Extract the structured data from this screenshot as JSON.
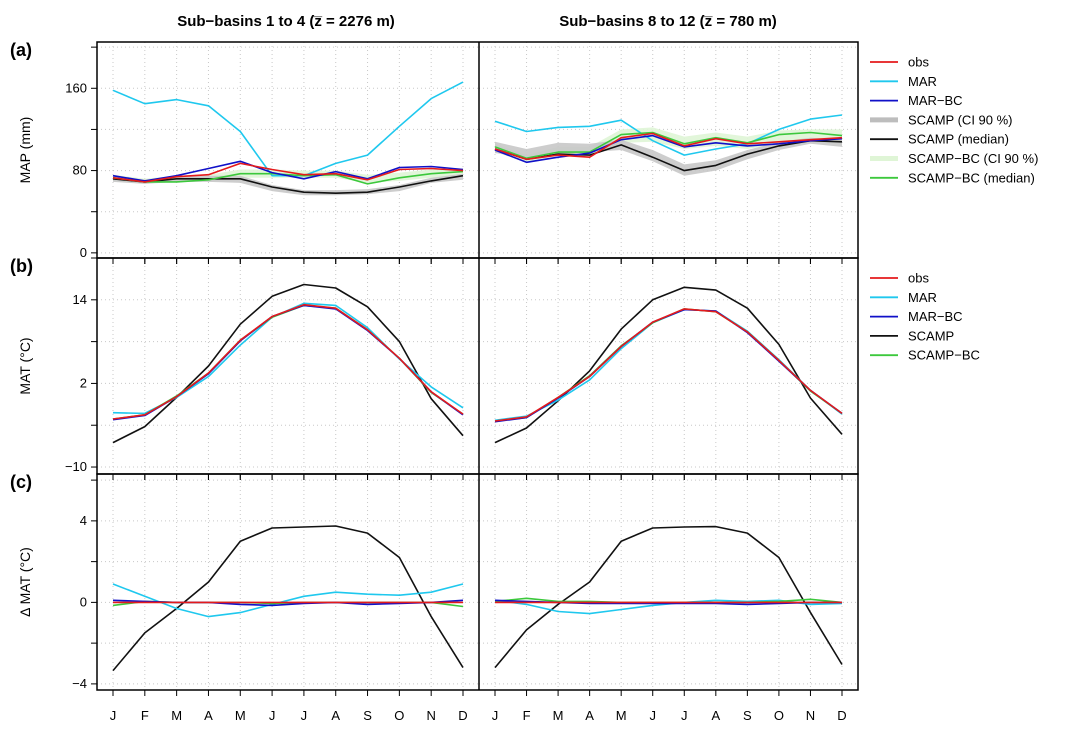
{
  "chart_data": {
    "type": "line",
    "months": [
      "J",
      "F",
      "M",
      "A",
      "M",
      "J",
      "J",
      "A",
      "S",
      "O",
      "N",
      "D"
    ],
    "columns": [
      {
        "title": "Sub−basins 1 to 4 (z̅ = 2276 m)"
      },
      {
        "title": "Sub−basins 8 to 12 (z̅ = 780 m)"
      }
    ],
    "colors": {
      "obs": "#e41a1c",
      "MAR": "#1fc8ee",
      "MAR-BC": "#1010c8",
      "SCAMP": "#111111",
      "SCAMP_CI": "#c8c8c8",
      "SCAMP-BC": "#3cc83c",
      "SCAMP-BC_CI": "#dff5d6"
    },
    "panels": [
      {
        "letter": "(a)",
        "ylabel": "MAP (mm)",
        "ylim": [
          -5,
          205
        ],
        "yticks": [
          0,
          80,
          160
        ],
        "ygrid": [
          0,
          40,
          80,
          120,
          160,
          200
        ],
        "legend": [
          {
            "label": "obs",
            "color": "#e41a1c",
            "wide": false
          },
          {
            "label": "MAR",
            "color": "#1fc8ee",
            "wide": false
          },
          {
            "label": "MAR−BC",
            "color": "#1010c8",
            "wide": false
          },
          {
            "label": "SCAMP (CI 90 %)",
            "color": "#bdbdbd",
            "wide": true
          },
          {
            "label": "SCAMP (median)",
            "color": "#111111",
            "wide": false
          },
          {
            "label": "SCAMP−BC (CI 90 %)",
            "color": "#dff5d6",
            "wide": true
          },
          {
            "label": "SCAMP−BC (median)",
            "color": "#3cc83c",
            "wide": false
          }
        ],
        "data": [
          {
            "bands": [
              {
                "color": "#dff5d6",
                "lower": [
                  70,
                  67,
                  70,
                  70,
                  73,
                  73,
                  73,
                  73,
                  68,
                  70,
                  73,
                  75
                ],
                "upper": [
                  76,
                  72,
                  75,
                  76,
                  81,
                  81,
                  80,
                  80,
                  76,
                  78,
                  81,
                  82
                ]
              },
              {
                "color": "#c8c8c8",
                "lower": [
                  69,
                  67,
                  69,
                  69,
                  68,
                  60,
                  56,
                  56,
                  57,
                  60,
                  68,
                  71
                ],
                "upper": [
                  75,
                  71,
                  75,
                  75,
                  75,
                  66,
                  61,
                  61,
                  62,
                  66,
                  73,
                  77
                ]
              }
            ],
            "series": [
              {
                "name": "MAR",
                "color": "#1fc8ee",
                "values": [
                  158,
                  145,
                  149,
                  143,
                  118,
                  75,
                  75,
                  87,
                  95,
                  123,
                  150,
                  166
                ]
              },
              {
                "name": "SCAMP",
                "color": "#111111",
                "values": [
                  72,
                  69,
                  72,
                  72,
                  72,
                  64,
                  59,
                  58,
                  59,
                  64,
                  70,
                  75
                ]
              },
              {
                "name": "SCAMP-BC",
                "color": "#3cc83c",
                "values": [
                  73,
                  69,
                  69,
                  71,
                  77,
                  77,
                  75,
                  76,
                  67,
                  73,
                  77,
                  79
                ]
              },
              {
                "name": "MAR-BC",
                "color": "#1010c8",
                "values": [
                  75,
                  70,
                  75,
                  82,
                  89,
                  78,
                  72,
                  79,
                  72,
                  83,
                  84,
                  81
                ]
              },
              {
                "name": "obs",
                "color": "#e41a1c",
                "values": [
                  73,
                  69,
                  74,
                  76,
                  87,
                  81,
                  76,
                  77,
                  71,
                  81,
                  82,
                  80
                ]
              }
            ]
          },
          {
            "bands": [
              {
                "color": "#dff5d6",
                "lower": [
                  98,
                  88,
                  95,
                  95,
                  107,
                  108,
                  101,
                  104,
                  101,
                  106,
                  108,
                  106
                ],
                "upper": [
                  106,
                  95,
                  103,
                  103,
                  120,
                  122,
                  113,
                  117,
                  113,
                  119,
                  120,
                  120
                ]
              },
              {
                "color": "#c8c8c8",
                "lower": [
                  97,
                  93,
                  97,
                  98,
                  100,
                  89,
                  75,
                  80,
                  91,
                  100,
                  106,
                  103
                ],
                "upper": [
                  108,
                  101,
                  107,
                  106,
                  110,
                  100,
                  86,
                  90,
                  100,
                  108,
                  112,
                  110
                ]
              }
            ],
            "series": [
              {
                "name": "MAR",
                "color": "#1fc8ee",
                "values": [
                  128,
                  118,
                  122,
                  123,
                  129,
                  109,
                  95,
                  101,
                  106,
                  120,
                  130,
                  134
                ]
              },
              {
                "name": "SCAMP",
                "color": "#111111",
                "values": [
                  101,
                  91,
                  96,
                  95,
                  105,
                  93,
                  80,
                  85,
                  96,
                  104,
                  109,
                  108
                ]
              },
              {
                "name": "SCAMP-BC",
                "color": "#3cc83c",
                "values": [
                  103,
                  92,
                  98,
                  98,
                  115,
                  117,
                  106,
                  112,
                  107,
                  115,
                  117,
                  114
                ]
              },
              {
                "name": "MAR-BC",
                "color": "#1010c8",
                "values": [
                  100,
                  88,
                  93,
                  97,
                  110,
                  114,
                  103,
                  107,
                  104,
                  106,
                  109,
                  111
                ]
              },
              {
                "name": "obs",
                "color": "#e41a1c",
                "values": [
                  101,
                  91,
                  95,
                  93,
                  112,
                  116,
                  104,
                  111,
                  106,
                  108,
                  110,
                  112
                ]
              }
            ]
          }
        ]
      },
      {
        "letter": "(b)",
        "ylabel": "MAT (°C)",
        "ylim": [
          -11,
          20
        ],
        "yticks": [
          -10,
          2,
          14
        ],
        "ygrid": [
          -10,
          -4,
          2,
          8,
          14,
          20
        ],
        "legend": [
          {
            "label": "obs",
            "color": "#e41a1c",
            "wide": false
          },
          {
            "label": "MAR",
            "color": "#1fc8ee",
            "wide": false
          },
          {
            "label": "MAR−BC",
            "color": "#1010c8",
            "wide": false
          },
          {
            "label": "SCAMP",
            "color": "#111111",
            "wide": false
          },
          {
            "label": "SCAMP−BC",
            "color": "#3cc83c",
            "wide": false
          }
        ],
        "data": [
          {
            "bands": [],
            "series": [
              {
                "name": "SCAMP",
                "color": "#111111",
                "values": [
                  -6.5,
                  -4.2,
                  0.0,
                  4.5,
                  10.5,
                  14.5,
                  16.2,
                  15.7,
                  13.0,
                  8.0,
                  -0.2,
                  -5.5
                ]
              },
              {
                "name": "MAR",
                "color": "#1fc8ee",
                "values": [
                  -2.2,
                  -2.3,
                  0.0,
                  3.0,
                  7.5,
                  11.5,
                  13.5,
                  13.2,
                  10.0,
                  5.5,
                  1.5,
                  -1.5
                ]
              },
              {
                "name": "SCAMP-BC",
                "color": "#3cc83c",
                "values": [
                  -3.1,
                  -2.5,
                  0.2,
                  3.5,
                  8.2,
                  11.5,
                  13.2,
                  12.8,
                  9.7,
                  5.6,
                  0.7,
                  -2.4
                ]
              },
              {
                "name": "MAR-BC",
                "color": "#1010c8",
                "values": [
                  -3.2,
                  -2.6,
                  0.1,
                  3.4,
                  8.1,
                  11.6,
                  13.2,
                  12.7,
                  9.6,
                  5.6,
                  0.8,
                  -2.5
                ]
              },
              {
                "name": "obs",
                "color": "#e41a1c",
                "values": [
                  -3.1,
                  -2.5,
                  0.1,
                  3.5,
                  8.2,
                  11.6,
                  13.3,
                  12.8,
                  9.7,
                  5.6,
                  0.8,
                  -2.4
                ]
              }
            ]
          },
          {
            "bands": [],
            "series": [
              {
                "name": "SCAMP",
                "color": "#111111",
                "values": [
                  -6.5,
                  -4.4,
                  -0.5,
                  3.8,
                  9.8,
                  14.0,
                  15.8,
                  15.4,
                  12.8,
                  7.6,
                  -0.1,
                  -5.3
                ]
              },
              {
                "name": "MAR",
                "color": "#1fc8ee",
                "values": [
                  -3.3,
                  -2.7,
                  -0.4,
                  2.5,
                  7.0,
                  10.7,
                  12.6,
                  12.4,
                  9.5,
                  5.4,
                  1.0,
                  -2.4
                ]
              },
              {
                "name": "SCAMP-BC",
                "color": "#3cc83c",
                "values": [
                  -3.4,
                  -2.9,
                  0.0,
                  3.1,
                  7.4,
                  10.7,
                  12.7,
                  12.3,
                  9.4,
                  5.3,
                  0.9,
                  -2.3
                ]
              },
              {
                "name": "MAR-BC",
                "color": "#1010c8",
                "values": [
                  -3.5,
                  -2.9,
                  -0.1,
                  3.0,
                  7.3,
                  10.8,
                  12.6,
                  12.4,
                  9.3,
                  5.2,
                  1.0,
                  -2.3
                ]
              },
              {
                "name": "obs",
                "color": "#e41a1c",
                "values": [
                  -3.4,
                  -2.8,
                  0.0,
                  3.0,
                  7.3,
                  10.8,
                  12.7,
                  12.3,
                  9.4,
                  5.3,
                  1.0,
                  -2.3
                ]
              }
            ]
          }
        ]
      },
      {
        "letter": "(c)",
        "ylabel": "Δ MAT (°C)",
        "ylim": [
          -4.3,
          6.3
        ],
        "yticks": [
          -4,
          0,
          4
        ],
        "ygrid": [
          -4,
          -2,
          0,
          2,
          4,
          6
        ],
        "legend": [],
        "data": [
          {
            "bands": [],
            "series": [
              {
                "name": "SCAMP",
                "color": "#111111",
                "values": [
                  -3.35,
                  -1.5,
                  -0.3,
                  1.0,
                  3.0,
                  3.65,
                  3.7,
                  3.75,
                  3.4,
                  2.2,
                  -0.7,
                  -3.2
                ]
              },
              {
                "name": "MAR",
                "color": "#1fc8ee",
                "values": [
                  0.9,
                  0.3,
                  -0.3,
                  -0.7,
                  -0.5,
                  -0.1,
                  0.3,
                  0.5,
                  0.4,
                  0.35,
                  0.5,
                  0.9
                ]
              },
              {
                "name": "SCAMP-BC",
                "color": "#3cc83c",
                "values": [
                  -0.15,
                  0.05,
                  0.0,
                  0.0,
                  0.0,
                  -0.05,
                  0.0,
                  0.0,
                  0.0,
                  0.0,
                  0.0,
                  -0.2
                ]
              },
              {
                "name": "MAR-BC",
                "color": "#1010c8",
                "values": [
                  0.1,
                  0.05,
                  0.0,
                  0.0,
                  -0.1,
                  -0.15,
                  -0.05,
                  0.0,
                  -0.1,
                  -0.05,
                  0.0,
                  0.1
                ]
              },
              {
                "name": "obs",
                "color": "#e41a1c",
                "values": [
                  0.0,
                  0.0,
                  0.0,
                  0.0,
                  0.0,
                  0.0,
                  0.0,
                  0.0,
                  0.0,
                  0.0,
                  0.0,
                  0.0
                ]
              }
            ]
          },
          {
            "bands": [],
            "series": [
              {
                "name": "SCAMP",
                "color": "#111111",
                "values": [
                  -3.2,
                  -1.35,
                  -0.1,
                  1.0,
                  3.0,
                  3.65,
                  3.7,
                  3.72,
                  3.4,
                  2.2,
                  -0.5,
                  -3.05
                ]
              },
              {
                "name": "MAR",
                "color": "#1fc8ee",
                "values": [
                  0.1,
                  -0.1,
                  -0.45,
                  -0.55,
                  -0.35,
                  -0.15,
                  0.0,
                  0.1,
                  0.05,
                  0.1,
                  -0.1,
                  -0.05
                ]
              },
              {
                "name": "SCAMP-BC",
                "color": "#3cc83c",
                "values": [
                  0.05,
                  0.2,
                  0.05,
                  0.05,
                  0.0,
                  0.0,
                  0.0,
                  0.0,
                  0.0,
                  0.05,
                  0.15,
                  0.0
                ]
              },
              {
                "name": "MAR-BC",
                "color": "#1010c8",
                "values": [
                  0.1,
                  0.05,
                  0.0,
                  -0.05,
                  -0.05,
                  -0.05,
                  -0.05,
                  -0.05,
                  -0.1,
                  -0.05,
                  0.0,
                  0.0
                ]
              },
              {
                "name": "obs",
                "color": "#e41a1c",
                "values": [
                  0.0,
                  0.0,
                  0.0,
                  0.0,
                  0.0,
                  0.0,
                  0.0,
                  0.0,
                  0.0,
                  0.0,
                  0.0,
                  0.0
                ]
              }
            ]
          }
        ]
      }
    ]
  }
}
